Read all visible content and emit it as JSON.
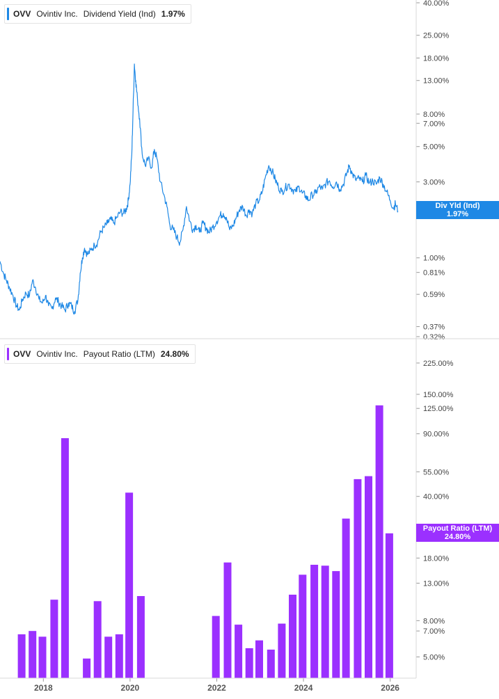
{
  "colors": {
    "yield": "#1e88e5",
    "payout": "#9b30ff",
    "axis_text": "#444444",
    "grid": "#d8d8d8"
  },
  "legend_top": {
    "ticker": "OVV",
    "name": "Ovintiv Inc.",
    "metric": "Dividend Yield (Ind)",
    "value": "1.97%"
  },
  "legend_bottom": {
    "ticker": "OVV",
    "name": "Ovintiv Inc.",
    "metric": "Payout Ratio (LTM)",
    "value": "24.80%"
  },
  "tag_top": {
    "line1": "Div Yld (Ind)",
    "line2": "1.97%"
  },
  "tag_bottom": {
    "line1": "Payout Ratio (LTM)",
    "line2": "24.80%"
  },
  "chart_data": [
    {
      "type": "line",
      "scale": "log",
      "series": [
        {
          "name": "Dividend Yield (Ind)",
          "current": 1.97
        }
      ],
      "ylim": [
        0.32,
        40
      ],
      "y_ticks": [
        {
          "v": 40,
          "label": "40.00%"
        },
        {
          "v": 25,
          "label": "25.00%"
        },
        {
          "v": 18,
          "label": "18.00%"
        },
        {
          "v": 13,
          "label": "13.00%"
        },
        {
          "v": 8,
          "label": "8.00%"
        },
        {
          "v": 7,
          "label": "7.00%"
        },
        {
          "v": 5,
          "label": "5.00%"
        },
        {
          "v": 3,
          "label": "3.00%"
        },
        {
          "v": 1,
          "label": "1.00%"
        },
        {
          "v": 0.81,
          "label": "0.81%"
        },
        {
          "v": 0.59,
          "label": "0.59%"
        },
        {
          "v": 0.37,
          "label": "0.37%"
        },
        {
          "v": 0.32,
          "label": "0.32%"
        }
      ],
      "points": [
        [
          2017.0,
          0.95
        ],
        [
          2017.08,
          0.8
        ],
        [
          2017.15,
          0.72
        ],
        [
          2017.22,
          0.65
        ],
        [
          2017.3,
          0.58
        ],
        [
          2017.38,
          0.5
        ],
        [
          2017.45,
          0.47
        ],
        [
          2017.52,
          0.55
        ],
        [
          2017.6,
          0.6
        ],
        [
          2017.68,
          0.58
        ],
        [
          2017.75,
          0.72
        ],
        [
          2017.82,
          0.65
        ],
        [
          2017.9,
          0.55
        ],
        [
          2017.98,
          0.52
        ],
        [
          2018.05,
          0.58
        ],
        [
          2018.12,
          0.5
        ],
        [
          2018.2,
          0.48
        ],
        [
          2018.28,
          0.56
        ],
        [
          2018.35,
          0.53
        ],
        [
          2018.42,
          0.5
        ],
        [
          2018.5,
          0.47
        ],
        [
          2018.58,
          0.52
        ],
        [
          2018.65,
          0.5
        ],
        [
          2018.72,
          0.46
        ],
        [
          2018.8,
          0.55
        ],
        [
          2018.85,
          0.8
        ],
        [
          2018.9,
          1.0
        ],
        [
          2018.95,
          1.15
        ],
        [
          2019.02,
          1.05
        ],
        [
          2019.1,
          1.12
        ],
        [
          2019.18,
          1.2
        ],
        [
          2019.25,
          1.25
        ],
        [
          2019.32,
          1.45
        ],
        [
          2019.4,
          1.55
        ],
        [
          2019.48,
          1.65
        ],
        [
          2019.55,
          1.75
        ],
        [
          2019.62,
          1.65
        ],
        [
          2019.7,
          1.8
        ],
        [
          2019.78,
          1.95
        ],
        [
          2019.85,
          1.9
        ],
        [
          2019.92,
          2.05
        ],
        [
          2019.96,
          2.3
        ],
        [
          2020.0,
          2.9
        ],
        [
          2020.04,
          4.5
        ],
        [
          2020.07,
          8.5
        ],
        [
          2020.1,
          16.5
        ],
        [
          2020.13,
          13.0
        ],
        [
          2020.17,
          10.0
        ],
        [
          2020.22,
          7.5
        ],
        [
          2020.28,
          4.5
        ],
        [
          2020.35,
          3.8
        ],
        [
          2020.42,
          4.2
        ],
        [
          2020.5,
          3.7
        ],
        [
          2020.56,
          4.8
        ],
        [
          2020.62,
          4.2
        ],
        [
          2020.7,
          3.0
        ],
        [
          2020.78,
          2.5
        ],
        [
          2020.85,
          2.1
        ],
        [
          2020.92,
          1.6
        ],
        [
          2021.0,
          1.5
        ],
        [
          2021.08,
          1.35
        ],
        [
          2021.15,
          1.25
        ],
        [
          2021.22,
          1.5
        ],
        [
          2021.3,
          2.1
        ],
        [
          2021.38,
          1.7
        ],
        [
          2021.45,
          1.5
        ],
        [
          2021.52,
          1.6
        ],
        [
          2021.6,
          1.45
        ],
        [
          2021.68,
          1.65
        ],
        [
          2021.75,
          1.55
        ],
        [
          2021.82,
          1.45
        ],
        [
          2021.9,
          1.55
        ],
        [
          2022.0,
          1.7
        ],
        [
          2022.08,
          1.85
        ],
        [
          2022.15,
          1.9
        ],
        [
          2022.22,
          1.8
        ],
        [
          2022.3,
          1.5
        ],
        [
          2022.38,
          1.6
        ],
        [
          2022.45,
          1.8
        ],
        [
          2022.52,
          2.0
        ],
        [
          2022.6,
          2.1
        ],
        [
          2022.68,
          1.85
        ],
        [
          2022.75,
          2.0
        ],
        [
          2022.82,
          1.9
        ],
        [
          2022.9,
          2.2
        ],
        [
          2022.98,
          2.3
        ],
        [
          2023.05,
          2.6
        ],
        [
          2023.12,
          3.2
        ],
        [
          2023.2,
          3.8
        ],
        [
          2023.28,
          3.5
        ],
        [
          2023.35,
          3.1
        ],
        [
          2023.42,
          2.8
        ],
        [
          2023.5,
          2.6
        ],
        [
          2023.58,
          2.75
        ],
        [
          2023.66,
          2.9
        ],
        [
          2023.74,
          2.7
        ],
        [
          2023.82,
          2.6
        ],
        [
          2023.9,
          2.8
        ],
        [
          2023.97,
          2.55
        ],
        [
          2024.05,
          2.45
        ],
        [
          2024.12,
          2.3
        ],
        [
          2024.2,
          2.5
        ],
        [
          2024.28,
          2.55
        ],
        [
          2024.36,
          2.8
        ],
        [
          2024.44,
          2.7
        ],
        [
          2024.52,
          2.95
        ],
        [
          2024.6,
          3.05
        ],
        [
          2024.68,
          2.8
        ],
        [
          2024.76,
          3.0
        ],
        [
          2024.84,
          2.7
        ],
        [
          2024.92,
          2.9
        ],
        [
          2025.0,
          3.4
        ],
        [
          2025.06,
          3.8
        ],
        [
          2025.12,
          3.4
        ],
        [
          2025.2,
          3.1
        ],
        [
          2025.28,
          3.15
        ],
        [
          2025.36,
          3.0
        ],
        [
          2025.44,
          3.3
        ],
        [
          2025.52,
          2.95
        ],
        [
          2025.6,
          3.05
        ],
        [
          2025.68,
          2.9
        ],
        [
          2025.76,
          3.2
        ],
        [
          2025.84,
          2.9
        ],
        [
          2025.92,
          2.6
        ],
        [
          2026.0,
          2.3
        ],
        [
          2026.08,
          2.05
        ],
        [
          2026.12,
          2.2
        ],
        [
          2026.18,
          1.97
        ]
      ]
    },
    {
      "type": "bar",
      "scale": "log",
      "series": [
        {
          "name": "Payout Ratio (LTM)",
          "current": 24.8
        }
      ],
      "ylim": [
        3.8,
        300
      ],
      "y_ticks": [
        {
          "v": 225,
          "label": "225.00%"
        },
        {
          "v": 150,
          "label": "150.00%"
        },
        {
          "v": 125,
          "label": "125.00%"
        },
        {
          "v": 90,
          "label": "90.00%"
        },
        {
          "v": 55,
          "label": "55.00%"
        },
        {
          "v": 40,
          "label": "40.00%"
        },
        {
          "v": 18,
          "label": "18.00%"
        },
        {
          "v": 13,
          "label": "13.00%"
        },
        {
          "v": 8,
          "label": "8.00%"
        },
        {
          "v": 7,
          "label": "7.00%"
        },
        {
          "v": 5,
          "label": "5.00%"
        }
      ],
      "bars": [
        [
          2017.5,
          6.7
        ],
        [
          2017.75,
          7.0
        ],
        [
          2017.98,
          6.5
        ],
        [
          2018.25,
          10.5
        ],
        [
          2018.5,
          85
        ],
        [
          2019.0,
          4.9
        ],
        [
          2019.25,
          10.3
        ],
        [
          2019.5,
          6.5
        ],
        [
          2019.75,
          6.7
        ],
        [
          2019.98,
          42
        ],
        [
          2020.25,
          11.0
        ],
        [
          2021.98,
          8.5
        ],
        [
          2022.25,
          17.0
        ],
        [
          2022.5,
          7.6
        ],
        [
          2022.75,
          5.6
        ],
        [
          2022.98,
          6.2
        ],
        [
          2023.25,
          5.5
        ],
        [
          2023.5,
          7.7
        ],
        [
          2023.75,
          11.2
        ],
        [
          2023.98,
          14.5
        ],
        [
          2024.25,
          16.5
        ],
        [
          2024.5,
          16.3
        ],
        [
          2024.75,
          15.2
        ],
        [
          2024.98,
          30
        ],
        [
          2025.25,
          50
        ],
        [
          2025.5,
          52
        ],
        [
          2025.75,
          130
        ],
        [
          2025.98,
          24.8
        ]
      ]
    }
  ],
  "x_axis": {
    "xlim": [
      2017.0,
      2026.6
    ],
    "ticks": [
      {
        "v": 2018,
        "label": "2018"
      },
      {
        "v": 2020,
        "label": "2020"
      },
      {
        "v": 2022,
        "label": "2022"
      },
      {
        "v": 2024,
        "label": "2024"
      },
      {
        "v": 2026,
        "label": "2026"
      }
    ]
  }
}
